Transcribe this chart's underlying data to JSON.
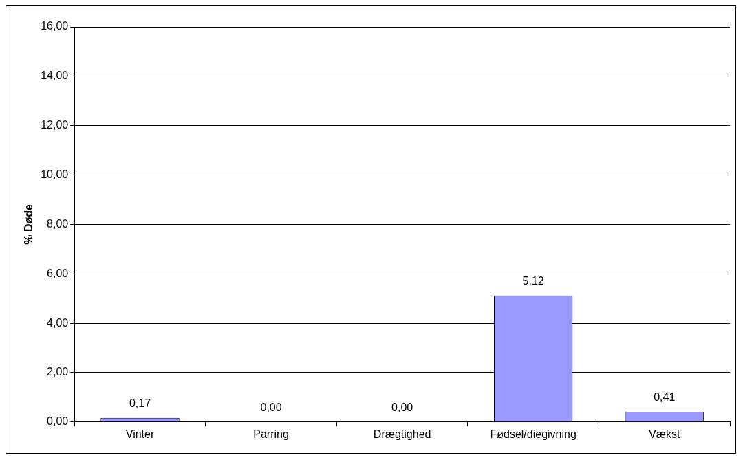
{
  "chart_data": {
    "type": "bar",
    "ylabel": "% Døde",
    "categories": [
      "Vinter",
      "Parring",
      "Drægtighed",
      "Fødsel/diegivning",
      "Vækst"
    ],
    "values": [
      0.17,
      0,
      0,
      5.12,
      0.41
    ],
    "value_labels": [
      "0,17",
      "0,00",
      "0,00",
      "5,12",
      "0,41"
    ],
    "color": "#9999ff",
    "ylim": [
      0,
      16
    ],
    "yticks": [
      {
        "value": 0,
        "label": "0,00"
      },
      {
        "value": 2,
        "label": "2,00"
      },
      {
        "value": 4,
        "label": "4,00"
      },
      {
        "value": 6,
        "label": "6,00"
      },
      {
        "value": 8,
        "label": "8,00"
      },
      {
        "value": 10,
        "label": "10,00"
      },
      {
        "value": 12,
        "label": "12,00"
      },
      {
        "value": 14,
        "label": "14,00"
      },
      {
        "value": 16,
        "label": "16,00"
      }
    ],
    "grid": "y"
  }
}
